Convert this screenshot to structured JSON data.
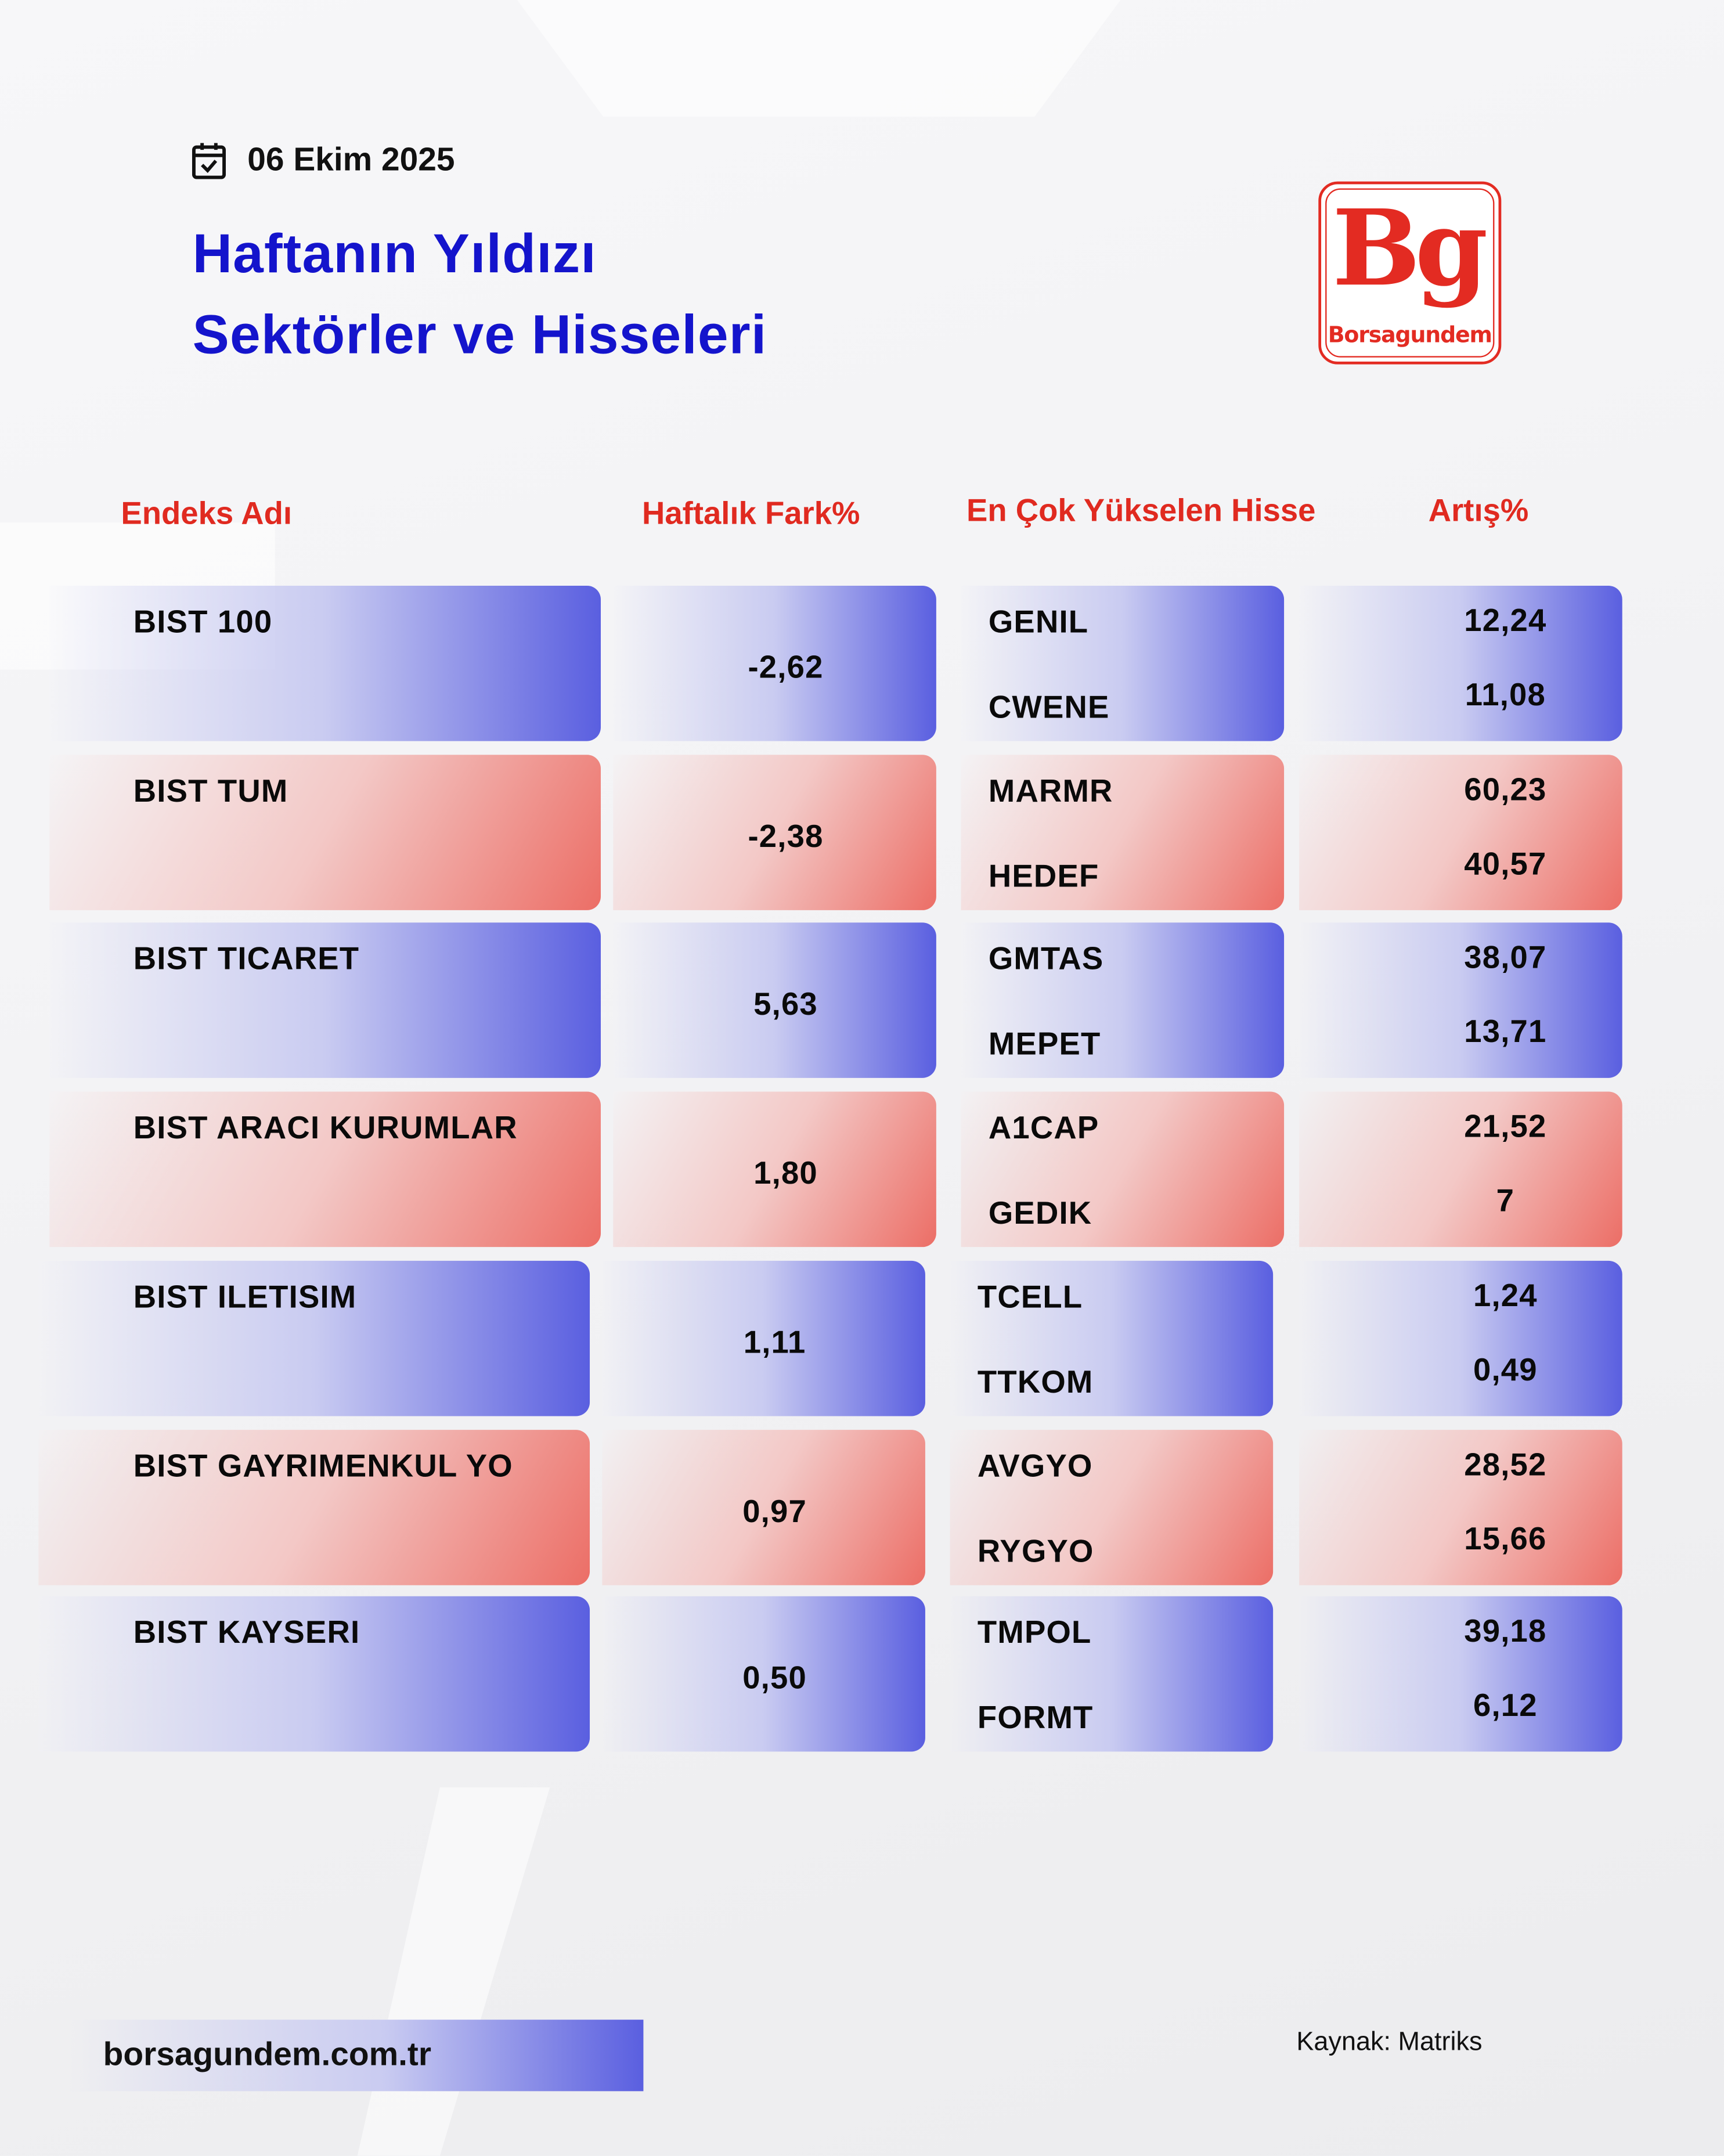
{
  "header": {
    "date": "06 Ekim 2025",
    "title_line1": "Haftanın Yıldızı",
    "title_line2": "Sektörler ve Hisseleri",
    "date_icon": "calendar-check-icon"
  },
  "logo": {
    "mark": "Bg",
    "name": "Borsagundem"
  },
  "columns": {
    "index_name": "Endeks Adı",
    "weekly_change": "Haftalık Fark%",
    "top_stock": "En Çok Yükselen Hisse",
    "increase": "Artış%"
  },
  "rows": [
    {
      "index": "BIST 100",
      "change": "-2,62",
      "stocks": [
        "GENIL",
        "CWENE"
      ],
      "increases": [
        "12,24",
        "11,08"
      ],
      "color": "blue"
    },
    {
      "index": "BIST TUM",
      "change": "-2,38",
      "stocks": [
        "MARMR",
        "HEDEF"
      ],
      "increases": [
        "60,23",
        "40,57"
      ],
      "color": "red"
    },
    {
      "index": "BIST TICARET",
      "change": "5,63",
      "stocks": [
        "GMTAS",
        "MEPET"
      ],
      "increases": [
        "38,07",
        "13,71"
      ],
      "color": "blue"
    },
    {
      "index": "BIST ARACI KURUMLAR",
      "change": "1,80",
      "stocks": [
        "A1CAP",
        "GEDIK"
      ],
      "increases": [
        "21,52",
        "7"
      ],
      "color": "red"
    },
    {
      "index": "BIST ILETISIM",
      "change": "1,11",
      "stocks": [
        "TCELL",
        "TTKOM"
      ],
      "increases": [
        "1,24",
        "0,49"
      ],
      "color": "blue"
    },
    {
      "index": "BIST GAYRIMENKUL YO",
      "change": "0,97",
      "stocks": [
        "AVGYO",
        "RYGYO"
      ],
      "increases": [
        "28,52",
        "15,66"
      ],
      "color": "red"
    },
    {
      "index": "BIST KAYSERI",
      "change": "0,50",
      "stocks": [
        "TMPOL",
        "FORMT"
      ],
      "increases": [
        "39,18",
        "6,12"
      ],
      "color": "blue"
    }
  ],
  "colors": {
    "title": "#1414cc",
    "header": "#e02a20",
    "blue": "#5a5fe0",
    "red": "#ec6e66",
    "brand": "#e32b22"
  },
  "footer": {
    "website": "borsagundem.com.tr",
    "source": "Kaynak: Matriks"
  }
}
